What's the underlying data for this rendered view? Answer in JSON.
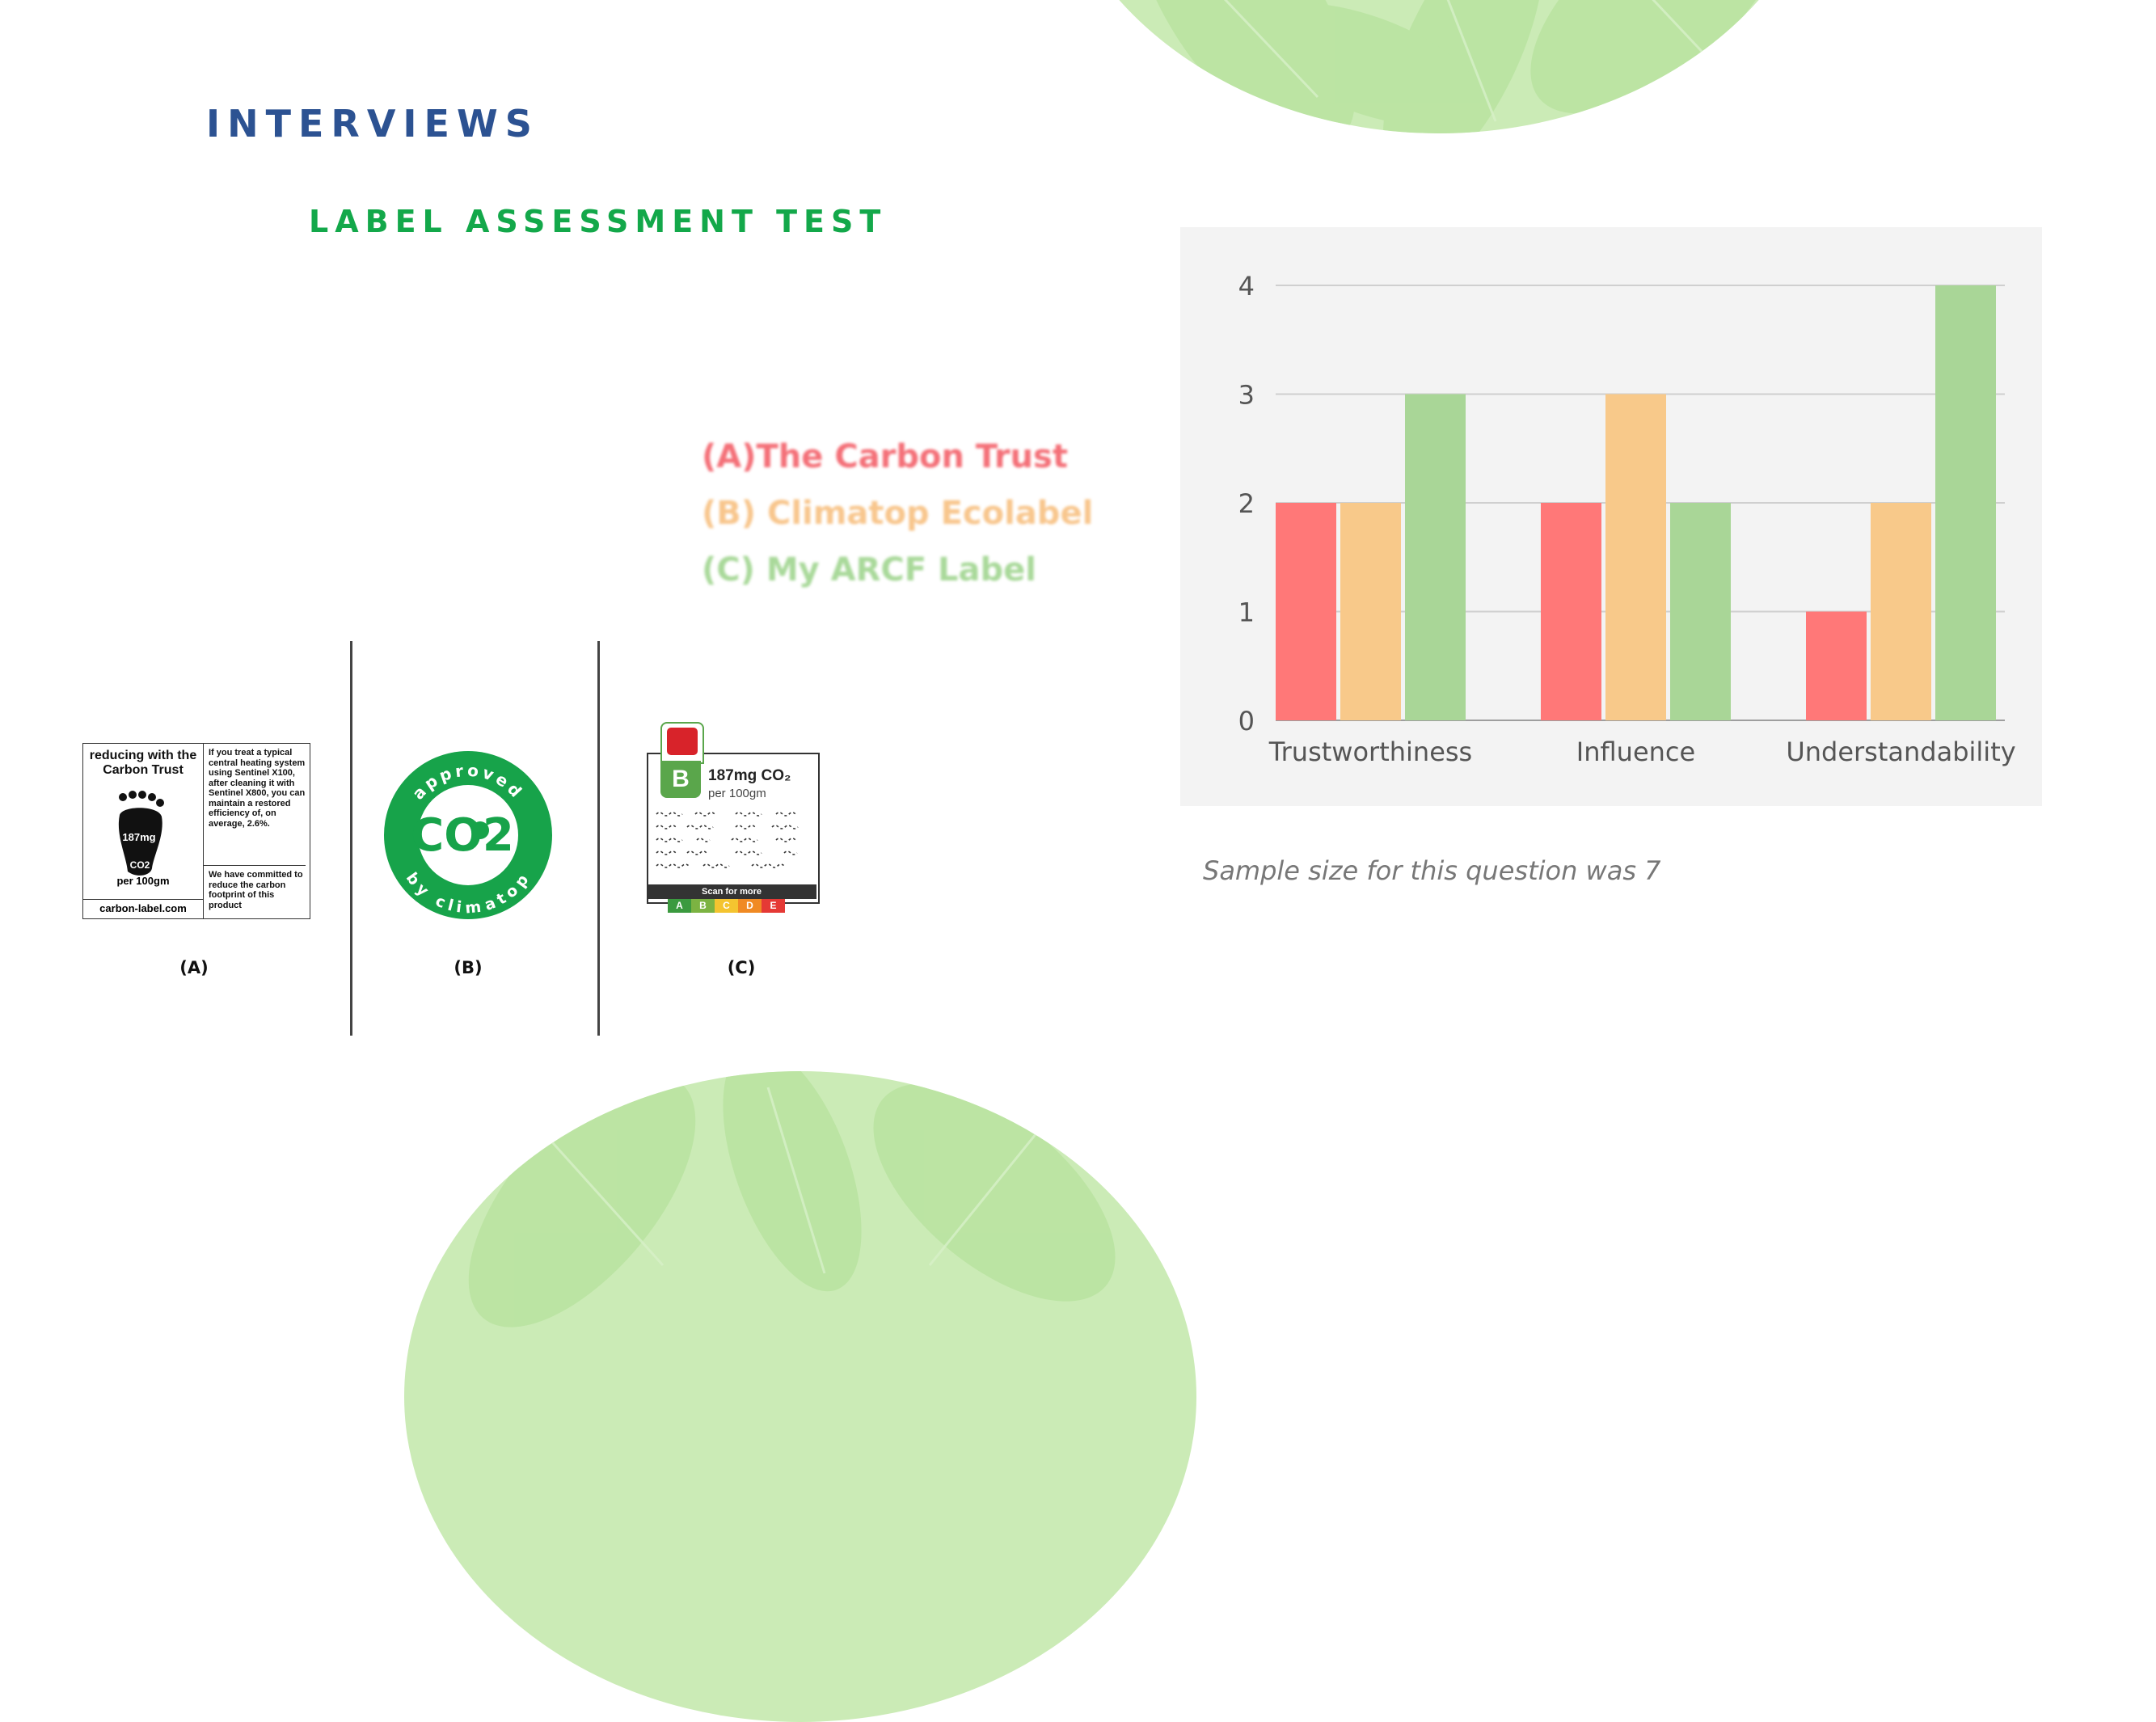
{
  "heading": {
    "main": "INTERVIEWS",
    "sub": "LABEL ASSESSMENT TEST"
  },
  "legend": {
    "a": "(A)The Carbon Trust",
    "b": "(B) Climatop Ecolabel",
    "c": "(C) My ARCF Label"
  },
  "labels": {
    "a": {
      "caption": "(A)",
      "heading": "reducing with the Carbon Trust",
      "value": "187mg",
      "unit": "CO2",
      "per": "per 100gm",
      "url": "carbon-label.com",
      "text1": "If you treat a typical central heating system using Sentinel X100, after cleaning it with Sentinel X800, you can maintain a restored efficiency of, on average, 2.6%.",
      "text2": "We have committed to reduce the carbon footprint of this product"
    },
    "b": {
      "caption": "(B)",
      "ring_top": "approved",
      "ring_bottom": "by climatop",
      "center": "CO2"
    },
    "c": {
      "caption": "(C)",
      "grade": "B",
      "co2": "187mg CO₂",
      "per": "per 100gm",
      "scan": "Scan for more",
      "scale": [
        "A",
        "B",
        "C",
        "D",
        "E"
      ]
    }
  },
  "colors": {
    "red": "#ff7878",
    "orange": "#f8c98a",
    "green": "#a9d697",
    "blob": "#cbebb6",
    "leaf": "#b8e39f"
  },
  "chart_data": {
    "type": "bar",
    "categories": [
      "Trustworthiness",
      "Influence",
      "Understandability"
    ],
    "series": [
      {
        "values": [
          2,
          2,
          1
        ],
        "color": "#ff7878"
      },
      {
        "values": [
          2,
          3,
          2
        ],
        "color": "#f8c98a"
      },
      {
        "values": [
          3,
          2,
          4
        ],
        "color": "#a9d697"
      }
    ],
    "ylim": [
      0,
      4
    ],
    "yticks": [
      0,
      1,
      2,
      3,
      4
    ],
    "grid": true,
    "title": "",
    "xlabel": "",
    "ylabel": ""
  },
  "note": "Sample size for this question was 7"
}
